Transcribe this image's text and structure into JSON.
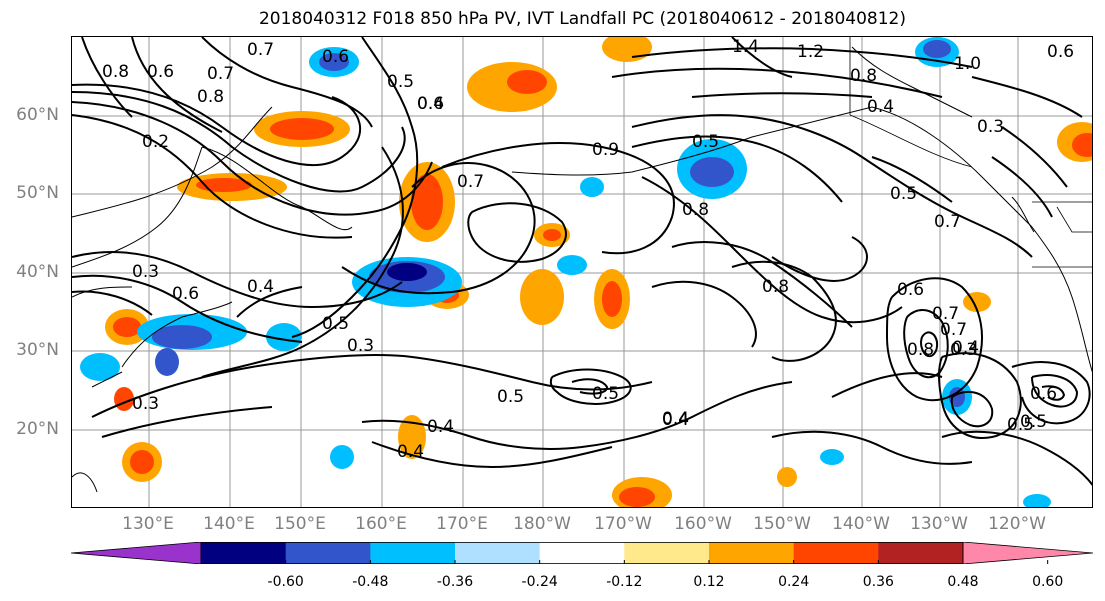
{
  "title": "2018040312 F018 850 hPa PV, IVT Landfall PC (2018040612 - 2018040812)",
  "latitude_labels": [
    "60°N",
    "50°N",
    "40°N",
    "30°N",
    "20°N"
  ],
  "longitude_labels": [
    "130°E",
    "140°E",
    "150°E",
    "160°E",
    "170°E",
    "180°W",
    "170°W",
    "160°W",
    "150°W",
    "140°W",
    "130°W",
    "120°W"
  ],
  "colorbar": {
    "colors": [
      "#9933cc",
      "#000080",
      "#3355cc",
      "#00bfff",
      "#b0e0ff",
      "#ffffff",
      "#ffe98a",
      "#ffa500",
      "#ff4500",
      "#b22222",
      "#ff88aa"
    ],
    "tick_labels": [
      "-0.60",
      "-0.48",
      "-0.36",
      "-0.24",
      "-0.12",
      "0.12",
      "0.24",
      "0.36",
      "0.48",
      "0.60"
    ]
  },
  "contour_labels": [
    "0.7",
    "0.6",
    "0.8",
    "0.5",
    "0.6",
    "0.7",
    "0.2",
    "0.8",
    "0.4",
    "1.4",
    "1.2",
    "0.8",
    "1.0",
    "0.6",
    "0.4",
    "0.3",
    "0.5",
    "0.7",
    "0.9",
    "0.8",
    "0.7",
    "0.6",
    "0.4",
    "0.3",
    "0.5",
    "0.3",
    "0.5",
    "0.6",
    "0.4",
    "0.8",
    "0.7",
    "0.3",
    "0.4",
    "0.8",
    "0.5",
    "0.4",
    "0.5",
    "0.4",
    "0.5",
    "0.4",
    "0.6",
    "0.5",
    "0.3",
    "0.7",
    "0.6"
  ],
  "map_data": {
    "region": "North Pacific",
    "field": "850 hPa PV shading with IVT landfall PC contours"
  }
}
